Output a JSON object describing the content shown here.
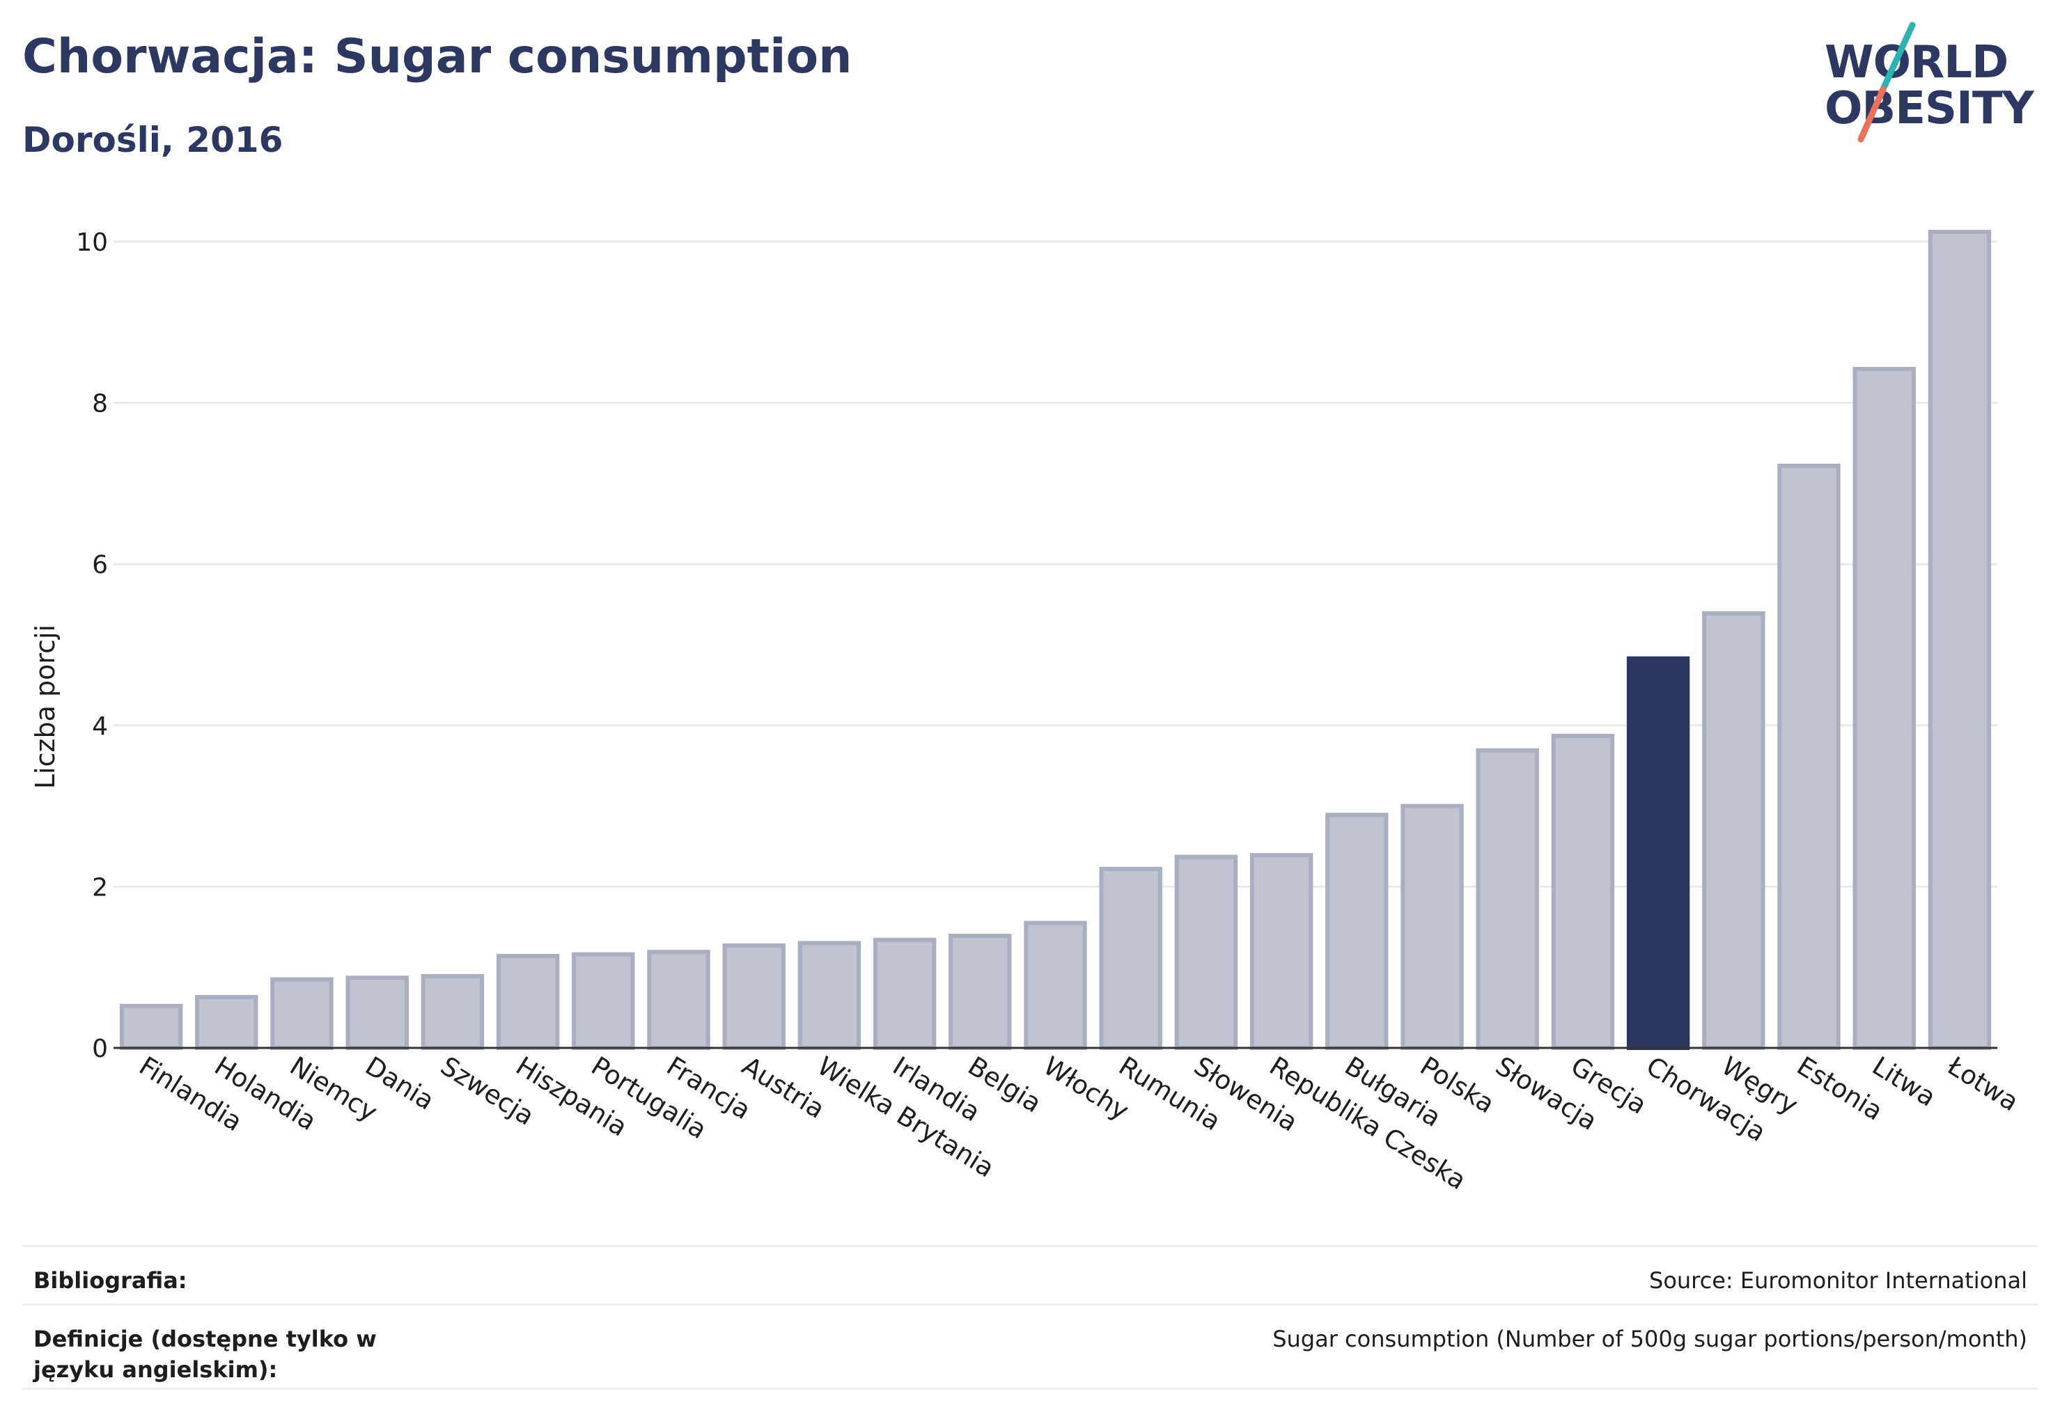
{
  "header": {
    "title": "Chorwacja: Sugar consumption",
    "subtitle": "Dorośli, 2016"
  },
  "logo": {
    "line1": "WORLD",
    "line2": "OBESITY",
    "slash_colors": [
      "#2bb3b1",
      "#e9725a"
    ]
  },
  "colors": {
    "bar_default": "#c0c4d0",
    "bar_default_stroke": "#a9aec0",
    "bar_highlight": "#2b365f",
    "gridline": "#e8e9ee",
    "axis": "#333333",
    "text": "#1d1d1d"
  },
  "chart_data": {
    "type": "bar",
    "title": "Chorwacja: Sugar consumption",
    "subtitle": "Dorośli, 2016",
    "xlabel": "",
    "ylabel": "Liczba porcji",
    "ylim": [
      0,
      10.4
    ],
    "yticks": [
      0,
      2,
      4,
      6,
      8,
      10
    ],
    "grid": true,
    "highlight": "Chorwacja",
    "categories": [
      "Finlandia",
      "Holandia",
      "Niemcy",
      "Dania",
      "Szwecja",
      "Hiszpania",
      "Portugalia",
      "Francja",
      "Austria",
      "Wielka Brytania",
      "Irlandia",
      "Belgia",
      "Włochy",
      "Rumunia",
      "Słowenia",
      "Republika Czeska",
      "Bułgaria",
      "Polska",
      "Słowacja",
      "Grecja",
      "Chorwacja",
      "Węgry",
      "Estonia",
      "Litwa",
      "Łotwa"
    ],
    "values": [
      0.52,
      0.63,
      0.85,
      0.87,
      0.89,
      1.14,
      1.16,
      1.19,
      1.27,
      1.3,
      1.34,
      1.39,
      1.55,
      2.22,
      2.37,
      2.39,
      2.89,
      3.0,
      3.69,
      3.87,
      4.83,
      5.39,
      7.22,
      8.42,
      10.12
    ]
  },
  "footer": {
    "bibliography_label": "Bibliografia:",
    "bibliography_value": "Source: Euromonitor International",
    "definitions_label": "Definicje (dostępne tylko w języku angielskim):",
    "definitions_value": "Sugar consumption (Number of 500g sugar portions/person/month)"
  }
}
